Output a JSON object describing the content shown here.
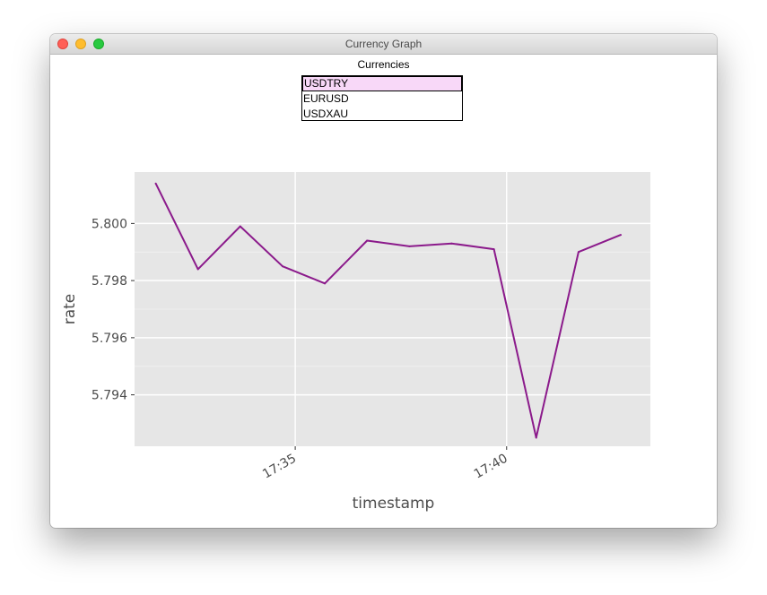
{
  "window": {
    "title": "Currency Graph"
  },
  "currencies": {
    "label": "Currencies",
    "items": [
      "USDTRY",
      "EURUSD",
      "USDXAU"
    ],
    "selected": "USDTRY"
  },
  "colors": {
    "line": "#8b1a8b",
    "panel": "#e6e6e6",
    "grid": "#ffffff",
    "selection": "#f8d8f8"
  },
  "chart_data": {
    "type": "line",
    "title": "",
    "xlabel": "timestamp",
    "ylabel": "rate",
    "x": [
      "17:31:42",
      "17:32:42",
      "17:33:42",
      "17:34:42",
      "17:35:42",
      "17:36:42",
      "17:37:42",
      "17:38:42",
      "17:39:42",
      "17:40:42",
      "17:41:42",
      "17:42:42"
    ],
    "series": [
      {
        "values": [
          5.8014,
          5.7984,
          5.7999,
          5.7985,
          5.7979,
          5.7994,
          5.7992,
          5.7993,
          5.7991,
          5.7925,
          5.799,
          5.7996
        ]
      }
    ],
    "xlim": [
      "17:31:12",
      "17:43:24"
    ],
    "ylim": [
      5.7922,
      5.8018
    ],
    "x_ticks": [
      "17:35",
      "17:40"
    ],
    "y_ticks": [
      5.794,
      5.796,
      5.798,
      5.8
    ],
    "y_tick_labels": [
      "5.794",
      "5.796",
      "5.798",
      "5.800"
    ],
    "grid": true
  }
}
